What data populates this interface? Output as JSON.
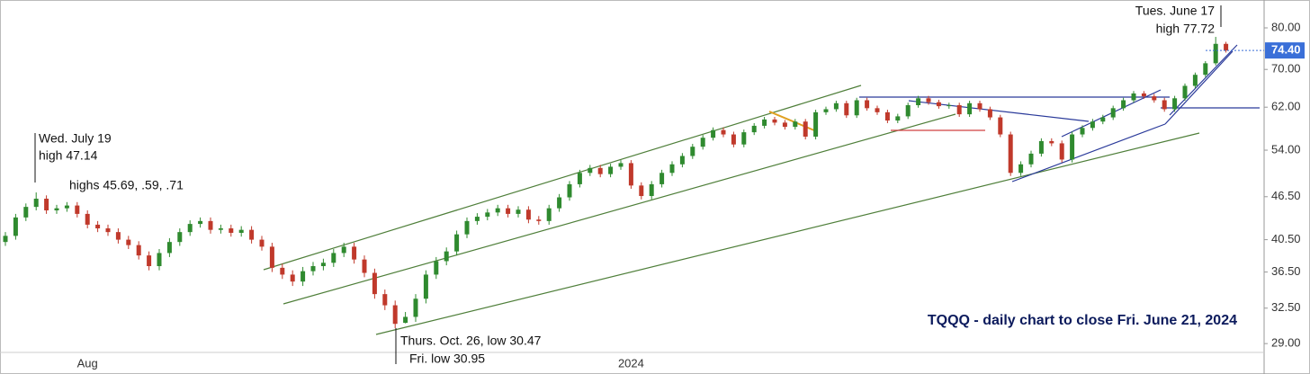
{
  "chart_data": {
    "type": "candlestick",
    "title": "TQQQ - daily chart to close Fri. June 21, 2024",
    "annotations": [
      "Wed. July 19",
      "high 47.14",
      "highs 45.69, .59, .71",
      "Thurs. Oct. 26, low 30.47",
      "Fri. low 30.95",
      "Tues. June 17",
      "high 77.72"
    ],
    "last_price": {
      "value": 74.4,
      "label": "74.40"
    },
    "log_scale": true,
    "up_color": "#2f8a2f",
    "down_color": "#c0392b",
    "ylim": [
      26.3,
      87.5
    ],
    "yticks": [
      {
        "value": 29,
        "label": "29.00"
      },
      {
        "value": 32.5,
        "label": "32.50"
      },
      {
        "value": 36.5,
        "label": "36.50"
      },
      {
        "value": 40.5,
        "label": "40.50"
      },
      {
        "value": 46.5,
        "label": "46.50"
      },
      {
        "value": 54,
        "label": "54.00"
      },
      {
        "value": 62,
        "label": "62.00"
      },
      {
        "value": 70,
        "label": "70.00"
      },
      {
        "value": 80,
        "label": "80.00"
      }
    ],
    "categories": [
      null,
      null,
      null,
      null,
      null,
      null,
      null,
      null,
      "Aug",
      null,
      null,
      null,
      null,
      null,
      null,
      null,
      null,
      null,
      null,
      null,
      null,
      null,
      null,
      null,
      null,
      null,
      null,
      null,
      null,
      null,
      null,
      null,
      null,
      null,
      null,
      null,
      null,
      null,
      null,
      null,
      null,
      null,
      null,
      null,
      null,
      null,
      null,
      null,
      null,
      null,
      null,
      null,
      null,
      null,
      null,
      null,
      null,
      null,
      null,
      null,
      null,
      "2024",
      null,
      null,
      null,
      null,
      null,
      null,
      null,
      null,
      null,
      null,
      null,
      null,
      null,
      null,
      null,
      null,
      null,
      null,
      null,
      null,
      null,
      null,
      null,
      null,
      null,
      null,
      null,
      null,
      null,
      null,
      null,
      null,
      null,
      null,
      null,
      null,
      null,
      null,
      null,
      null,
      null,
      null,
      null,
      null,
      null,
      null,
      null,
      null,
      null,
      null,
      null,
      null,
      null,
      null,
      null,
      null,
      null,
      null
    ],
    "open": [
      40.2,
      41.0,
      43.5,
      45.0,
      46.2,
      44.5,
      44.8,
      45.2,
      44.0,
      42.5,
      42.0,
      41.5,
      40.5,
      39.8,
      38.5,
      37.2,
      38.8,
      40.2,
      41.5,
      42.6,
      43.0,
      41.8,
      42.0,
      41.4,
      41.8,
      40.5,
      39.6,
      37.0,
      36.2,
      35.4,
      36.6,
      37.2,
      37.6,
      38.8,
      39.6,
      38.0,
      36.4,
      34.0,
      32.8,
      31.0,
      31.6,
      33.5,
      36.2,
      37.8,
      39.0,
      41.2,
      43.0,
      43.6,
      44.2,
      44.8,
      44.0,
      44.6,
      43.2,
      43.0,
      44.8,
      46.4,
      48.4,
      50.2,
      51.0,
      50.0,
      51.2,
      51.8,
      48.2,
      46.6,
      48.4,
      50.2,
      51.6,
      53.0,
      54.6,
      56.2,
      57.6,
      56.8,
      55.0,
      57.2,
      58.4,
      59.6,
      59.0,
      58.2,
      59.2,
      56.4,
      61.0,
      61.6,
      62.8,
      60.4,
      63.4,
      61.8,
      61.0,
      59.4,
      60.2,
      62.4,
      63.8,
      63.0,
      62.2,
      62.4,
      60.6,
      62.8,
      61.6,
      60.0,
      56.8,
      50.2,
      51.6,
      53.4,
      55.6,
      55.2,
      52.4,
      56.8,
      58.0,
      59.2,
      60.0,
      61.8,
      63.4,
      64.8,
      64.2,
      63.4,
      61.6,
      63.8,
      66.4,
      68.8,
      71.4,
      76.0
    ],
    "high": [
      41.5,
      44.0,
      45.5,
      47.14,
      46.7,
      45.3,
      45.7,
      45.7,
      44.5,
      43.0,
      42.5,
      42.0,
      41.0,
      40.3,
      39.0,
      39.3,
      40.7,
      42.0,
      43.1,
      43.5,
      43.5,
      42.5,
      42.5,
      42.3,
      42.3,
      41.0,
      40.1,
      37.5,
      36.7,
      37.1,
      37.7,
      38.1,
      39.3,
      40.1,
      40.1,
      38.5,
      36.9,
      34.5,
      33.3,
      32.1,
      34.0,
      36.7,
      38.3,
      39.5,
      41.7,
      43.5,
      44.1,
      44.7,
      45.3,
      45.3,
      45.1,
      45.1,
      43.7,
      45.3,
      46.9,
      48.9,
      50.7,
      51.5,
      51.5,
      51.7,
      52.3,
      52.3,
      48.7,
      48.9,
      50.7,
      52.1,
      53.5,
      55.1,
      56.7,
      58.1,
      58.1,
      57.3,
      57.7,
      58.9,
      60.1,
      60.1,
      59.5,
      59.7,
      59.7,
      61.5,
      62.1,
      63.3,
      63.3,
      63.9,
      63.9,
      62.3,
      61.5,
      60.7,
      62.9,
      64.3,
      64.3,
      63.5,
      62.9,
      62.9,
      63.3,
      63.3,
      62.1,
      60.5,
      57.3,
      52.1,
      53.9,
      56.1,
      56.1,
      55.7,
      57.3,
      58.5,
      59.7,
      60.5,
      62.3,
      63.9,
      65.3,
      65.3,
      64.7,
      63.9,
      64.3,
      66.9,
      69.3,
      71.9,
      77.72,
      76.5
    ],
    "low": [
      39.7,
      40.5,
      43.0,
      44.5,
      44.0,
      44.0,
      44.3,
      43.5,
      42.0,
      41.5,
      41.0,
      40.0,
      39.3,
      38.0,
      36.7,
      36.7,
      38.3,
      39.7,
      41.0,
      42.1,
      41.3,
      41.3,
      40.9,
      40.9,
      40.0,
      39.1,
      36.5,
      35.7,
      34.9,
      34.9,
      36.1,
      36.7,
      37.1,
      38.3,
      37.5,
      35.9,
      33.5,
      32.3,
      30.47,
      30.95,
      31.1,
      33.0,
      35.7,
      37.3,
      38.5,
      40.7,
      42.5,
      43.1,
      43.7,
      43.5,
      43.5,
      42.7,
      42.5,
      42.5,
      44.3,
      45.9,
      47.9,
      49.7,
      49.5,
      49.5,
      50.7,
      47.7,
      46.1,
      46.1,
      47.9,
      49.7,
      51.1,
      52.5,
      54.1,
      55.7,
      56.3,
      54.5,
      54.5,
      56.7,
      57.9,
      58.5,
      57.7,
      57.7,
      55.9,
      55.9,
      60.5,
      61.1,
      59.9,
      59.9,
      61.3,
      60.5,
      58.9,
      58.9,
      59.7,
      61.9,
      62.5,
      61.7,
      61.7,
      60.1,
      60.1,
      61.1,
      59.5,
      56.3,
      49.7,
      49.7,
      51.1,
      52.9,
      54.7,
      51.9,
      51.9,
      56.3,
      57.5,
      58.7,
      59.5,
      61.3,
      62.9,
      63.7,
      62.9,
      61.1,
      61.1,
      63.3,
      65.9,
      68.3,
      70.9,
      73.9
    ],
    "close": [
      41.0,
      43.5,
      45.0,
      46.2,
      44.5,
      44.8,
      45.2,
      44.0,
      42.5,
      42.0,
      41.5,
      40.5,
      39.8,
      38.5,
      37.2,
      38.8,
      40.2,
      41.5,
      42.6,
      43.0,
      41.8,
      42.0,
      41.4,
      41.8,
      40.5,
      39.6,
      37.0,
      36.2,
      35.4,
      36.6,
      37.2,
      37.6,
      38.8,
      39.6,
      38.0,
      36.4,
      34.0,
      32.8,
      30.9,
      31.6,
      33.5,
      36.2,
      37.8,
      39.0,
      41.2,
      43.0,
      43.6,
      44.2,
      44.8,
      44.0,
      44.6,
      43.2,
      43.0,
      44.8,
      46.4,
      48.4,
      50.2,
      51.0,
      50.0,
      51.2,
      51.8,
      48.2,
      46.6,
      48.4,
      50.2,
      51.6,
      53.0,
      54.6,
      56.2,
      57.6,
      56.8,
      55.0,
      57.2,
      58.4,
      59.6,
      59.0,
      58.2,
      59.2,
      56.4,
      61.0,
      61.6,
      62.8,
      60.4,
      63.4,
      61.8,
      61.0,
      59.4,
      60.2,
      62.4,
      63.8,
      63.0,
      62.2,
      62.4,
      60.6,
      62.8,
      61.6,
      60.0,
      56.8,
      50.2,
      51.6,
      53.4,
      55.6,
      55.2,
      52.4,
      56.8,
      58.0,
      59.2,
      60.0,
      61.8,
      63.4,
      64.8,
      64.2,
      63.4,
      61.6,
      63.8,
      66.4,
      68.8,
      71.4,
      76.0,
      74.4
    ]
  }
}
